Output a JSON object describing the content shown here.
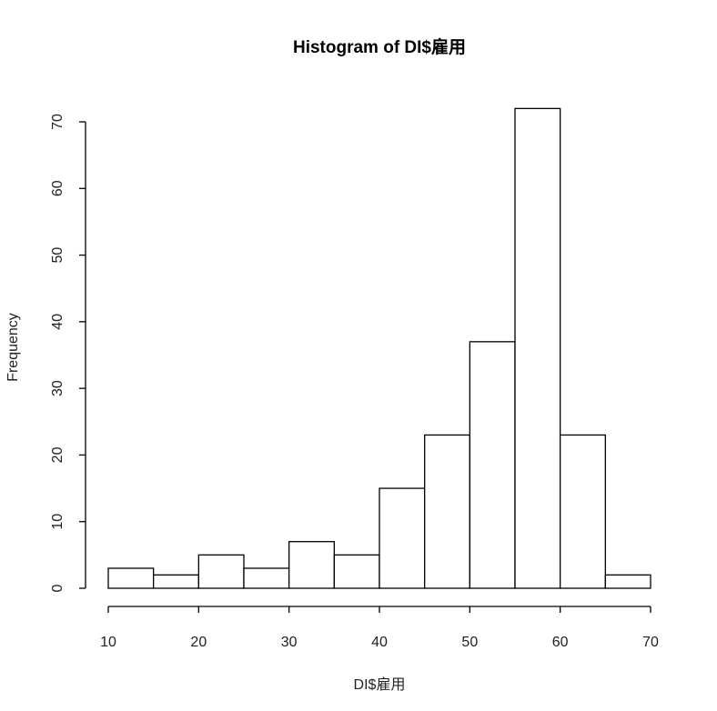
{
  "chart_data": {
    "type": "bar",
    "title": "Histogram of DI$雇用",
    "xlabel": "DI$雇用",
    "ylabel": "Frequency",
    "bins": [
      [
        10,
        15
      ],
      [
        15,
        20
      ],
      [
        20,
        25
      ],
      [
        25,
        30
      ],
      [
        30,
        35
      ],
      [
        35,
        40
      ],
      [
        40,
        45
      ],
      [
        45,
        50
      ],
      [
        50,
        55
      ],
      [
        55,
        60
      ],
      [
        60,
        65
      ],
      [
        65,
        70
      ]
    ],
    "values": [
      3,
      2,
      5,
      3,
      7,
      5,
      15,
      23,
      37,
      72,
      23,
      2
    ],
    "xlim": [
      10,
      70
    ],
    "ylim": [
      0,
      70
    ],
    "xticks": [
      "10",
      "20",
      "30",
      "40",
      "50",
      "60",
      "70"
    ],
    "yticks": [
      "0",
      "10",
      "20",
      "30",
      "40",
      "50",
      "60",
      "70"
    ],
    "grid": false,
    "bar_fill": "#ffffff",
    "bar_stroke": "#000000"
  }
}
